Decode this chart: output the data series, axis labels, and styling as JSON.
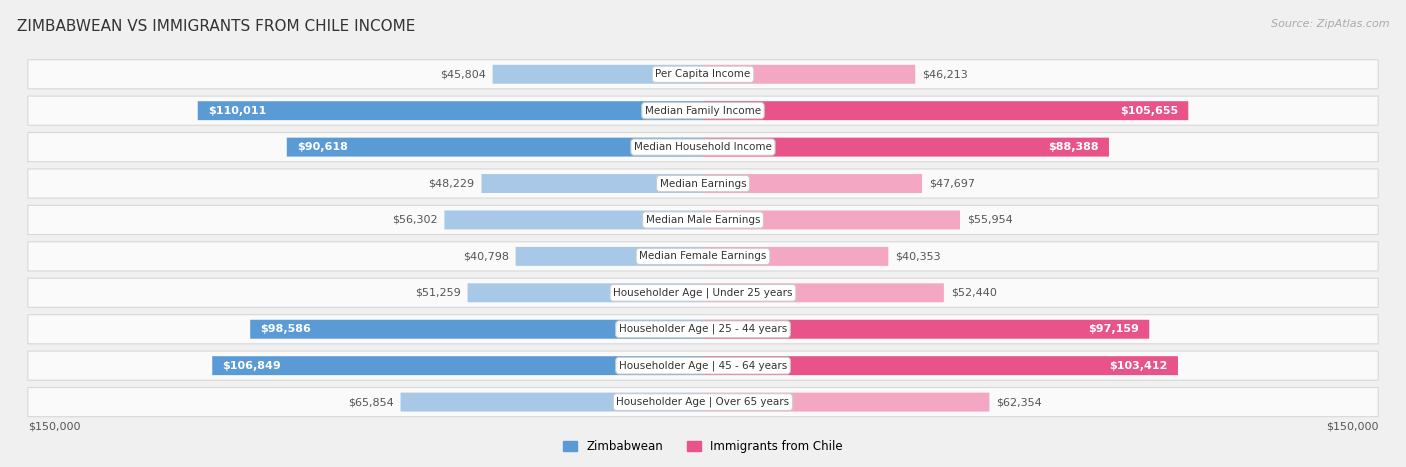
{
  "title": "ZIMBABWEAN VS IMMIGRANTS FROM CHILE INCOME",
  "source": "Source: ZipAtlas.com",
  "categories": [
    "Per Capita Income",
    "Median Family Income",
    "Median Household Income",
    "Median Earnings",
    "Median Male Earnings",
    "Median Female Earnings",
    "Householder Age | Under 25 years",
    "Householder Age | 25 - 44 years",
    "Householder Age | 45 - 64 years",
    "Householder Age | Over 65 years"
  ],
  "zimbabwean_values": [
    45804,
    110011,
    90618,
    48229,
    56302,
    40798,
    51259,
    98586,
    106849,
    65854
  ],
  "chile_values": [
    46213,
    105655,
    88388,
    47697,
    55954,
    40353,
    52440,
    97159,
    103412,
    62354
  ],
  "zimbabwean_labels": [
    "$45,804",
    "$110,011",
    "$90,618",
    "$48,229",
    "$56,302",
    "$40,798",
    "$51,259",
    "$98,586",
    "$106,849",
    "$65,854"
  ],
  "chile_labels": [
    "$46,213",
    "$105,655",
    "$88,388",
    "$47,697",
    "$55,954",
    "$40,353",
    "$52,440",
    "$97,159",
    "$103,412",
    "$62,354"
  ],
  "max_value": 150000,
  "zimbabwean_color_light": "#a8c8e8",
  "zimbabwean_color_dark": "#5b9bd5",
  "chile_color_light": "#f4a7c3",
  "chile_color_dark": "#e8538a",
  "label_threshold": 80000,
  "background_color": "#f0f0f0",
  "row_bg_color": "#fafafa",
  "row_border_color": "#d8d8d8",
  "legend_zimbabwean": "Zimbabwean",
  "legend_chile": "Immigrants from Chile",
  "left_axis_label": "$150,000",
  "right_axis_label": "$150,000",
  "title_fontsize": 11,
  "label_fontsize": 8,
  "cat_fontsize": 7.5
}
